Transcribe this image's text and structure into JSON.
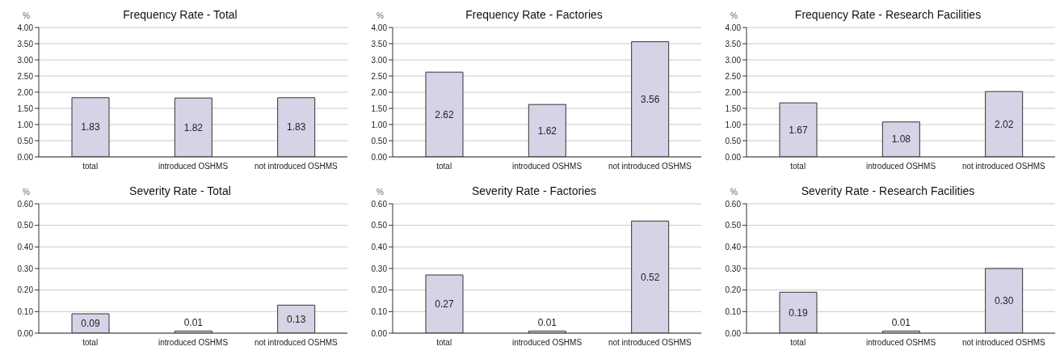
{
  "chart_data": [
    {
      "type": "bar",
      "title": "Frequency Rate - Total",
      "ylabel": "%",
      "categories": [
        "total",
        "introduced OSHMS",
        "not introduced OSHMS"
      ],
      "values": [
        1.83,
        1.82,
        1.83
      ],
      "value_labels": [
        "1.83",
        "1.82",
        "1.83"
      ],
      "color": "#d6d3e6",
      "ylim": [
        0,
        4
      ],
      "yticks": [
        {
          "value": 0,
          "label": "0.00"
        },
        {
          "value": 0.5,
          "label": "0.50"
        },
        {
          "value": 1,
          "label": "1.00"
        },
        {
          "value": 1.5,
          "label": "1.50"
        },
        {
          "value": 2,
          "label": "2.00"
        },
        {
          "value": 2.5,
          "label": "2.50"
        },
        {
          "value": 3,
          "label": "3.00"
        },
        {
          "value": 3.5,
          "label": "3.50"
        },
        {
          "value": 4,
          "label": "4.00"
        }
      ],
      "grid": "y",
      "legend": false
    },
    {
      "type": "bar",
      "title": "Frequency Rate - Factories",
      "ylabel": "%",
      "categories": [
        "total",
        "introduced OSHMS",
        "not introduced OSHMS"
      ],
      "values": [
        2.62,
        1.62,
        3.56
      ],
      "value_labels": [
        "2.62",
        "1.62",
        "3.56"
      ],
      "color": "#d6d3e6",
      "ylim": [
        0,
        4
      ],
      "yticks": [
        {
          "value": 0,
          "label": "0.00"
        },
        {
          "value": 0.5,
          "label": "0.50"
        },
        {
          "value": 1,
          "label": "1.00"
        },
        {
          "value": 1.5,
          "label": "1.50"
        },
        {
          "value": 2,
          "label": "2.00"
        },
        {
          "value": 2.5,
          "label": "2.50"
        },
        {
          "value": 3,
          "label": "3.00"
        },
        {
          "value": 3.5,
          "label": "3.50"
        },
        {
          "value": 4,
          "label": "4.00"
        }
      ],
      "grid": "y",
      "legend": false
    },
    {
      "type": "bar",
      "title": "Frequency Rate - Research Facilities",
      "ylabel": "%",
      "categories": [
        "total",
        "introduced OSHMS",
        "not introduced OSHMS"
      ],
      "values": [
        1.67,
        1.08,
        2.02
      ],
      "value_labels": [
        "1.67",
        "1.08",
        "2.02"
      ],
      "color": "#d6d3e6",
      "ylim": [
        0,
        4
      ],
      "yticks": [
        {
          "value": 0,
          "label": "0.00"
        },
        {
          "value": 0.5,
          "label": "0.50"
        },
        {
          "value": 1,
          "label": "1.00"
        },
        {
          "value": 1.5,
          "label": "1.50"
        },
        {
          "value": 2,
          "label": "2.00"
        },
        {
          "value": 2.5,
          "label": "2.50"
        },
        {
          "value": 3,
          "label": "3.00"
        },
        {
          "value": 3.5,
          "label": "3.50"
        },
        {
          "value": 4,
          "label": "4.00"
        }
      ],
      "grid": "y",
      "legend": false
    },
    {
      "type": "bar",
      "title": "Severity Rate - Total",
      "ylabel": "%",
      "categories": [
        "total",
        "introduced OSHMS",
        "not introduced OSHMS"
      ],
      "values": [
        0.09,
        0.01,
        0.13
      ],
      "value_labels": [
        "0.09",
        "0.01",
        "0.13"
      ],
      "color": "#d6d3e6",
      "ylim": [
        0,
        0.6
      ],
      "yticks": [
        {
          "value": 0,
          "label": "0.00"
        },
        {
          "value": 0.1,
          "label": "0.10"
        },
        {
          "value": 0.2,
          "label": "0.20"
        },
        {
          "value": 0.3,
          "label": "0.30"
        },
        {
          "value": 0.4,
          "label": "0.40"
        },
        {
          "value": 0.5,
          "label": "0.50"
        },
        {
          "value": 0.6,
          "label": "0.60"
        }
      ],
      "grid": "y",
      "legend": false
    },
    {
      "type": "bar",
      "title": "Severity Rate - Factories",
      "ylabel": "%",
      "categories": [
        "total",
        "introduced OSHMS",
        "not introduced OSHMS"
      ],
      "values": [
        0.27,
        0.01,
        0.52
      ],
      "value_labels": [
        "0.27",
        "0.01",
        "0.52"
      ],
      "color": "#d6d3e6",
      "ylim": [
        0,
        0.6
      ],
      "yticks": [
        {
          "value": 0,
          "label": "0.00"
        },
        {
          "value": 0.1,
          "label": "0.10"
        },
        {
          "value": 0.2,
          "label": "0.20"
        },
        {
          "value": 0.3,
          "label": "0.30"
        },
        {
          "value": 0.4,
          "label": "0.40"
        },
        {
          "value": 0.5,
          "label": "0.50"
        },
        {
          "value": 0.6,
          "label": "0.60"
        }
      ],
      "grid": "y",
      "legend": false
    },
    {
      "type": "bar",
      "title": "Severity Rate - Research Facilities",
      "ylabel": "%",
      "categories": [
        "total",
        "introduced OSHMS",
        "not introduced OSHMS"
      ],
      "values": [
        0.19,
        0.01,
        0.3
      ],
      "value_labels": [
        "0.19",
        "0.01",
        "0.30"
      ],
      "color": "#d6d3e6",
      "ylim": [
        0,
        0.6
      ],
      "yticks": [
        {
          "value": 0,
          "label": "0.00"
        },
        {
          "value": 0.1,
          "label": "0.10"
        },
        {
          "value": 0.2,
          "label": "0.20"
        },
        {
          "value": 0.3,
          "label": "0.30"
        },
        {
          "value": 0.4,
          "label": "0.40"
        },
        {
          "value": 0.5,
          "label": "0.50"
        },
        {
          "value": 0.6,
          "label": "0.60"
        }
      ],
      "grid": "y",
      "legend": false
    }
  ]
}
